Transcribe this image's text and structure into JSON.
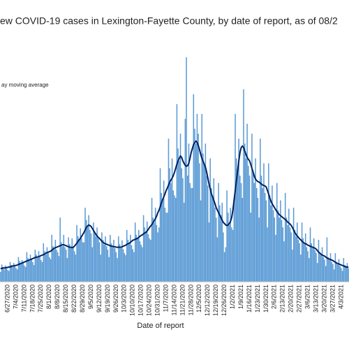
{
  "chart_data": {
    "type": "bar",
    "title": "ew COVID-19 cases in Lexington-Fayette County, by date of report, as of 08/2",
    "x_label": "Date of report",
    "categories": [
      null,
      null,
      null,
      null,
      null,
      null,
      "6/27/2020",
      null,
      null,
      null,
      null,
      null,
      null,
      "7/4/2020",
      null,
      null,
      null,
      null,
      null,
      null,
      "7/11/2020",
      null,
      null,
      null,
      null,
      null,
      null,
      "7/18/2020",
      null,
      null,
      null,
      null,
      null,
      null,
      "7/25/2020",
      null,
      null,
      null,
      null,
      null,
      null,
      "8/1/2020",
      null,
      null,
      null,
      null,
      null,
      null,
      "8/8/2020",
      null,
      null,
      null,
      null,
      null,
      null,
      "8/15/2020",
      null,
      null,
      null,
      null,
      null,
      null,
      "8/22/2020",
      null,
      null,
      null,
      null,
      null,
      null,
      "8/29/2020",
      null,
      null,
      null,
      null,
      null,
      null,
      "9/5/2020",
      null,
      null,
      null,
      null,
      null,
      null,
      "9/12/2020",
      null,
      null,
      null,
      null,
      null,
      null,
      "9/19/2020",
      null,
      null,
      null,
      null,
      null,
      null,
      "9/26/2020",
      null,
      null,
      null,
      null,
      null,
      null,
      "10/3/2020",
      null,
      null,
      null,
      null,
      null,
      null,
      "10/10/2020",
      null,
      null,
      null,
      null,
      null,
      null,
      "10/17/2020",
      null,
      null,
      null,
      null,
      null,
      null,
      "10/24/2020",
      null,
      null,
      null,
      null,
      null,
      null,
      "10/31/2020",
      null,
      null,
      null,
      null,
      null,
      null,
      "11/7/2020",
      null,
      null,
      null,
      null,
      null,
      null,
      "11/14/2020",
      null,
      null,
      null,
      null,
      null,
      null,
      "11/21/2020",
      null,
      null,
      null,
      null,
      null,
      null,
      "11/28/2020",
      null,
      null,
      null,
      null,
      null,
      null,
      "12/5/2020",
      null,
      null,
      null,
      null,
      null,
      null,
      "12/12/2020",
      null,
      null,
      null,
      null,
      null,
      null,
      "12/19/2020",
      null,
      null,
      null,
      null,
      null,
      null,
      "12/26/2020",
      null,
      null,
      null,
      null,
      null,
      null,
      "1/2/2021",
      null,
      null,
      null,
      null,
      null,
      null,
      "1/9/2021",
      null,
      null,
      null,
      null,
      null,
      null,
      "1/16/2021",
      null,
      null,
      null,
      null,
      null,
      null,
      "1/23/2021",
      null,
      null,
      null,
      null,
      null,
      null,
      "1/30/2021",
      null,
      null,
      null,
      null,
      null,
      null,
      "2/6/2021",
      null,
      null,
      null,
      null,
      null,
      null,
      "2/13/2021",
      null,
      null,
      null,
      null,
      null,
      null,
      "2/20/2021",
      null,
      null,
      null,
      null,
      null,
      null,
      "2/27/2021",
      null,
      null,
      null,
      null,
      null,
      null,
      "3/6/2021",
      null,
      null,
      null,
      null,
      null,
      null,
      "3/13/2021",
      null,
      null,
      null,
      null,
      null,
      null,
      "3/20/2021",
      null,
      null,
      null,
      null,
      null,
      null,
      "3/27/2021",
      null,
      null,
      null,
      null,
      null,
      null,
      "4/3/2021",
      null,
      null,
      null,
      null,
      null,
      null
    ],
    "series": [
      {
        "type": "bar",
        "color": "#5b9bd5",
        "values": [
          20,
          35,
          30,
          25,
          33,
          28,
          24,
          22,
          40,
          34,
          30,
          38,
          31,
          28,
          25,
          50,
          42,
          36,
          44,
          38,
          33,
          30,
          60,
          48,
          42,
          55,
          46,
          40,
          34,
          65,
          55,
          48,
          62,
          50,
          44,
          40,
          78,
          62,
          55,
          70,
          58,
          50,
          46,
          95,
          72,
          66,
          85,
          65,
          60,
          52,
          130,
          80,
          72,
          95,
          70,
          65,
          48,
          90,
          76,
          68,
          88,
          70,
          62,
          55,
          115,
          92,
          85,
          108,
          88,
          80,
          80,
          150,
          125,
          110,
          135,
          105,
          98,
          70,
          120,
          100,
          92,
          110,
          88,
          80,
          55,
          100,
          85,
          75,
          92,
          72,
          65,
          50,
          95,
          78,
          70,
          85,
          68,
          60,
          48,
          92,
          76,
          68,
          84,
          66,
          58,
          54,
          105,
          85,
          76,
          95,
          74,
          66,
          60,
          120,
          95,
          88,
          105,
          82,
          75,
          70,
          135,
          110,
          100,
          122,
          96,
          88,
          85,
          170,
          130,
          120,
          150,
          115,
          100,
          110,
          230,
          180,
          165,
          205,
          150,
          140,
          140,
          290,
          230,
          200,
          250,
          185,
          175,
          170,
          360,
          270,
          245,
          300,
          230,
          210,
          160,
          330,
          455,
          215,
          280,
          200,
          190,
          190,
          380,
          310,
          280,
          340,
          300,
          240,
          165,
          340,
          260,
          235,
          280,
          215,
          195,
          120,
          250,
          190,
          170,
          210,
          150,
          130,
          90,
          200,
          155,
          135,
          160,
          100,
          60,
          70,
          185,
          140,
          115,
          150,
          110,
          105,
          160,
          340,
          250,
          225,
          290,
          215,
          200,
          170,
          390,
          280,
          250,
          320,
          235,
          215,
          140,
          300,
          225,
          200,
          250,
          190,
          170,
          130,
          290,
          215,
          190,
          240,
          180,
          165,
          110,
          240,
          175,
          155,
          195,
          145,
          130,
          95,
          200,
          145,
          130,
          165,
          125,
          110,
          82,
          180,
          130,
          115,
          148,
          110,
          100,
          65,
          150,
          105,
          92,
          120,
          85,
          78,
          55,
          120,
          88,
          76,
          98,
          70,
          62,
          48,
          110,
          78,
          68,
          88,
          64,
          58,
          38,
          85,
          60,
          54,
          70,
          50,
          45,
          32,
          90,
          50,
          44,
          58,
          40,
          36,
          25,
          58,
          40,
          35,
          46,
          32,
          28,
          22,
          48,
          34,
          30,
          38,
          27
        ]
      },
      {
        "type": "line",
        "name": "ay moving average",
        "color": "#002060",
        "values": [
          27,
          27,
          28,
          28,
          28,
          29,
          29,
          30,
          30,
          31,
          32,
          32,
          33,
          33,
          34,
          35,
          36,
          37,
          38,
          39,
          40,
          41,
          42,
          43,
          44,
          45,
          46,
          47,
          48,
          49,
          50,
          50,
          51,
          52,
          53,
          54,
          55,
          56,
          58,
          59,
          60,
          61,
          62,
          64,
          66,
          68,
          69,
          70,
          71,
          72,
          73,
          74,
          75,
          75,
          74,
          73,
          72,
          71,
          70,
          70,
          69,
          70,
          72,
          75,
          78,
          82,
          85,
          88,
          92,
          96,
          100,
          105,
          110,
          113,
          115,
          114,
          112,
          108,
          104,
          100,
          96,
          93,
          90,
          88,
          85,
          82,
          80,
          78,
          77,
          76,
          75,
          74,
          73,
          72,
          72,
          71,
          71,
          70,
          70,
          70,
          70,
          70,
          71,
          72,
          73,
          74,
          76,
          77,
          78,
          80,
          82,
          84,
          85,
          86,
          87,
          88,
          90,
          92,
          94,
          95,
          97,
          99,
          100,
          103,
          106,
          110,
          113,
          116,
          120,
          124,
          128,
          133,
          140,
          145,
          152,
          160,
          166,
          172,
          178,
          185,
          190,
          196,
          202,
          206,
          210,
          215,
          222,
          230,
          238,
          245,
          250,
          255,
          252,
          245,
          240,
          236,
          234,
          235,
          240,
          250,
          262,
          270,
          278,
          282,
          285,
          282,
          276,
          268,
          258,
          250,
          244,
          238,
          232,
          222,
          210,
          198,
          188,
          178,
          172,
          165,
          158,
          150,
          145,
          140,
          135,
          130,
          125,
          120,
          118,
          115,
          114,
          115,
          118,
          122,
          130,
          145,
          165,
          185,
          205,
          225,
          245,
          262,
          272,
          275,
          272,
          265,
          258,
          252,
          248,
          245,
          238,
          230,
          222,
          214,
          208,
          205,
          203,
          202,
          200,
          198,
          196,
          195,
          194,
          192,
          185,
          178,
          170,
          163,
          158,
          154,
          150,
          146,
          142,
          139,
          136,
          134,
          132,
          130,
          128,
          126,
          124,
          121,
          119,
          117,
          114,
          110,
          105,
          100,
          96,
          93,
          90,
          87,
          85,
          82,
          80,
          78,
          77,
          76,
          74,
          73,
          72,
          71,
          70,
          69,
          68,
          66,
          63,
          60,
          58,
          56,
          54,
          53,
          52,
          50,
          48,
          47,
          46,
          45,
          44,
          43,
          41,
          40,
          38,
          37,
          36,
          35,
          34,
          33,
          32,
          31,
          30,
          30,
          29
        ]
      }
    ],
    "ylim": [
      0,
      500
    ]
  }
}
